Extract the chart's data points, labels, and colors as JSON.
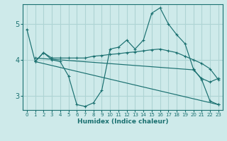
{
  "xlabel": "Humidex (Indice chaleur)",
  "bg_color": "#ceeaea",
  "grid_color": "#aed4d4",
  "line_color": "#1a7070",
  "xlim": [
    -0.5,
    23.5
  ],
  "ylim": [
    2.6,
    5.55
  ],
  "yticks": [
    3,
    4,
    5
  ],
  "xticks": [
    0,
    1,
    2,
    3,
    4,
    5,
    6,
    7,
    8,
    9,
    10,
    11,
    12,
    13,
    14,
    15,
    16,
    17,
    18,
    19,
    20,
    21,
    22,
    23
  ],
  "lines": [
    {
      "x": [
        0,
        1,
        2,
        3,
        4,
        5,
        6,
        7,
        8,
        9,
        10,
        11,
        12,
        13,
        14,
        15,
        16,
        17,
        18,
        19,
        20,
        21,
        22,
        23
      ],
      "y": [
        4.85,
        3.95,
        4.2,
        4.0,
        3.95,
        3.55,
        2.75,
        2.7,
        2.8,
        3.15,
        4.3,
        4.35,
        4.55,
        4.3,
        4.55,
        5.3,
        5.45,
        5.0,
        4.7,
        4.45,
        3.75,
        3.45,
        2.85,
        2.75
      ]
    },
    {
      "x": [
        1,
        2,
        3,
        4,
        5,
        6,
        7,
        8,
        9,
        10,
        11,
        12,
        13,
        14,
        15,
        16,
        17,
        18,
        19,
        20,
        21,
        22,
        23
      ],
      "y": [
        3.95,
        4.2,
        4.05,
        4.05,
        4.05,
        4.05,
        4.05,
        4.1,
        4.12,
        4.15,
        4.17,
        4.2,
        4.22,
        4.25,
        4.28,
        4.3,
        4.25,
        4.2,
        4.1,
        4.0,
        3.9,
        3.75,
        3.45
      ]
    },
    {
      "x": [
        1,
        23
      ],
      "y": [
        3.95,
        2.75
      ]
    },
    {
      "x": [
        1,
        20,
        21,
        22,
        23
      ],
      "y": [
        4.05,
        3.72,
        3.48,
        3.38,
        3.48
      ]
    }
  ]
}
